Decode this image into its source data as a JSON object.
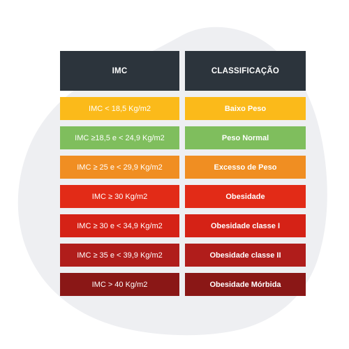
{
  "table": {
    "headers": {
      "imc": "IMC",
      "classificacao": "CLASSIFICAÇÃO"
    },
    "rows": [
      {
        "imc": "IMC < 18,5 Kg/m2",
        "classificacao": "Baixo Peso",
        "color": "#FBBA1A"
      },
      {
        "imc": "IMC ≥18,5 e < 24,9 Kg/m2",
        "classificacao": "Peso Normal",
        "color": "#7FBE5D"
      },
      {
        "imc": "IMC ≥ 25 e < 29,9 Kg/m2",
        "classificacao": "Excesso de Peso",
        "color": "#F08E22"
      },
      {
        "imc": "IMC ≥ 30 Kg/m2",
        "classificacao": "Obesidade",
        "color": "#E22B17"
      },
      {
        "imc": "IMC ≥ 30 e < 34,9 Kg/m2",
        "classificacao": "Obesidade classe I",
        "color": "#D52216"
      },
      {
        "imc": "IMC ≥ 35 e < 39,9 Kg/m2",
        "classificacao": "Obesidade classe II",
        "color": "#B01D1B"
      },
      {
        "imc": "IMC > 40 Kg/m2",
        "classificacao": "Obesidade Mórbida",
        "color": "#8A1716"
      }
    ]
  },
  "colors": {
    "header_background": "#2C343C",
    "backdrop_blob": "#EEEFF2",
    "text": "#FFFFFF"
  }
}
